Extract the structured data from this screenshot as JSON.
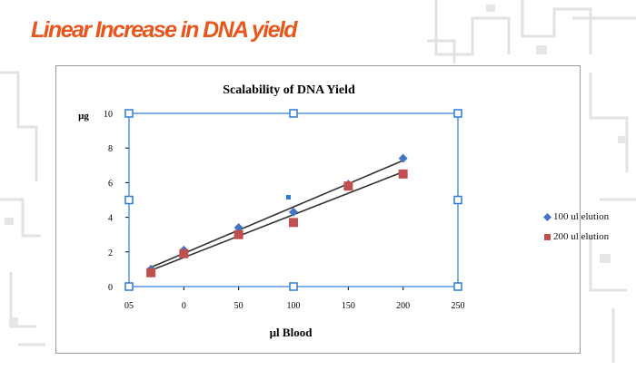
{
  "slide": {
    "title": "Linear Increase in DNA yield"
  },
  "colors": {
    "title_orange": "#e8561c",
    "series1": "#4472c4",
    "series2": "#c0504d",
    "selection_handles": "#2e7bd6"
  },
  "chart_data": {
    "type": "scatter",
    "title": "Scalability of DNA Yield",
    "xlabel": "µl Blood",
    "ylabel": "µg",
    "x_tick_labels": [
      "05",
      "0",
      "50",
      "100",
      "150",
      "200",
      "250"
    ],
    "y_tick_labels": [
      "0",
      "2",
      "4",
      "6",
      "8",
      "10"
    ],
    "xlim": [
      -50,
      250
    ],
    "ylim": [
      0,
      10
    ],
    "grid": false,
    "legend_position": "right",
    "trendlines": true,
    "series": [
      {
        "name": "100 ul elution",
        "marker": "diamond",
        "x": [
          -30,
          0,
          50,
          100,
          150,
          200
        ],
        "y": [
          1.0,
          2.1,
          3.4,
          4.3,
          5.9,
          7.4
        ]
      },
      {
        "name": "200 ul elution",
        "marker": "square",
        "x": [
          -30,
          0,
          50,
          100,
          150,
          200
        ],
        "y": [
          0.8,
          1.9,
          3.0,
          3.7,
          5.8,
          6.5
        ]
      }
    ]
  }
}
